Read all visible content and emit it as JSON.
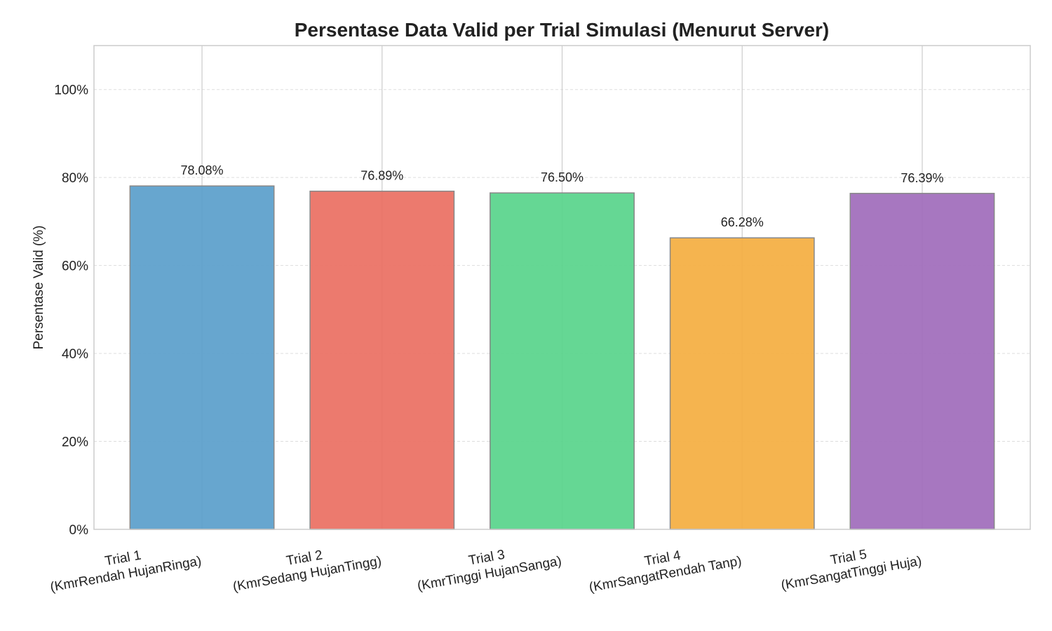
{
  "chart_data": {
    "type": "bar",
    "title": "Persentase Data Valid per Trial Simulasi (Menurut Server)",
    "xlabel": "",
    "ylabel": "Persentase Valid (%)",
    "ylim": [
      0,
      110
    ],
    "yticks": [
      0,
      20,
      40,
      60,
      80,
      100
    ],
    "ytick_labels": [
      "0%",
      "20%",
      "40%",
      "60%",
      "80%",
      "100%"
    ],
    "grid": true,
    "categories": [
      [
        "Trial 1",
        "(KmrRendah HujanRinga)"
      ],
      [
        "Trial 2",
        "(KmrSedang HujanTingg)"
      ],
      [
        "Trial 3",
        "(KmrTinggi HujanSanga)"
      ],
      [
        "Trial 4",
        "(KmrSangatRendah Tanp)"
      ],
      [
        "Trial 5",
        "(KmrSangatTinggi Huja)"
      ]
    ],
    "values": [
      78.08,
      76.89,
      76.5,
      66.28,
      76.39
    ],
    "value_labels": [
      "78.08%",
      "76.89%",
      "76.50%",
      "66.28%",
      "76.39%"
    ],
    "colors": [
      "#5a9ecb",
      "#ea6f62",
      "#58d48b",
      "#f4ae40",
      "#a06bbb"
    ]
  }
}
